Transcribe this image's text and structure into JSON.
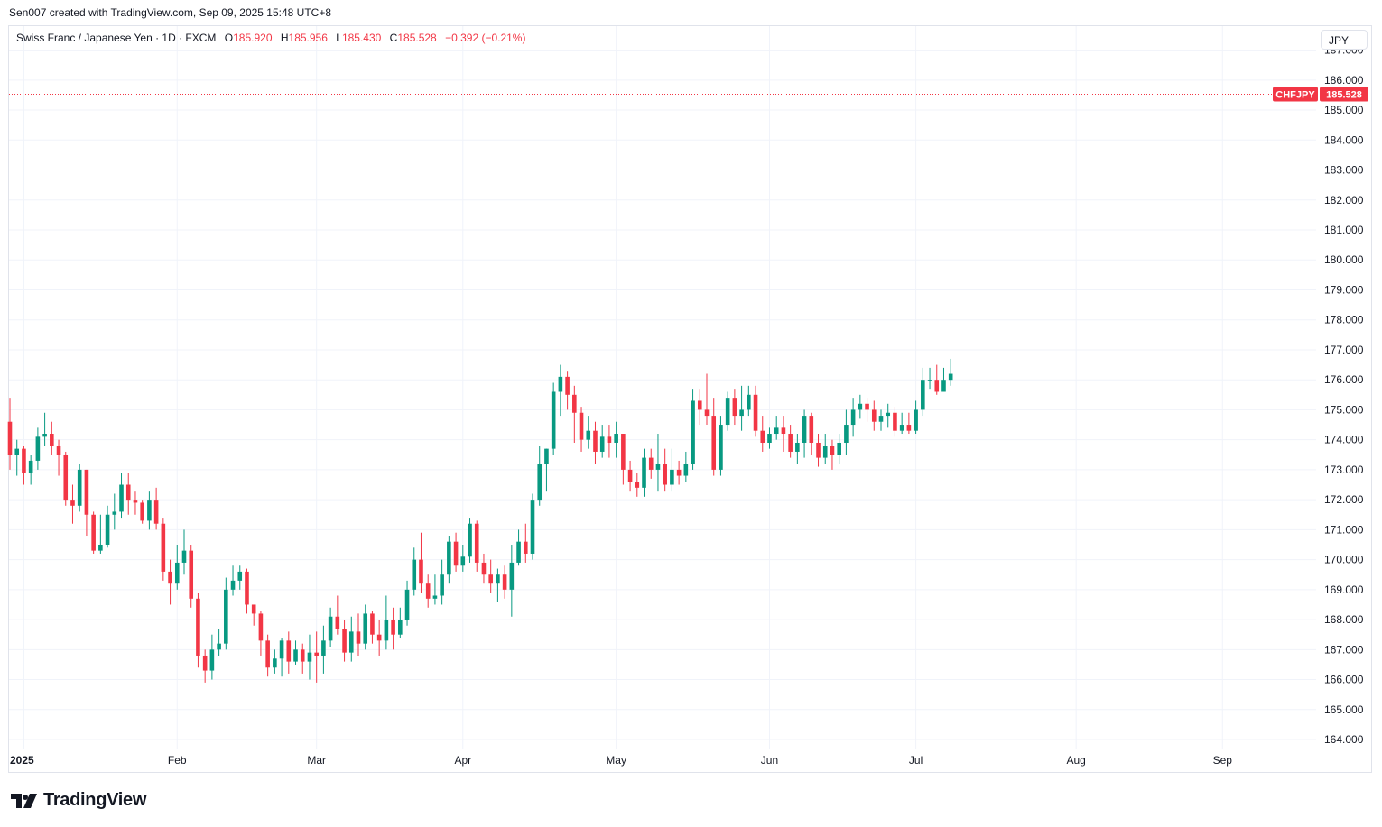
{
  "header": {
    "attribution": "Sen007 created with TradingView.com, Sep 09, 2025 15:48 UTC+8"
  },
  "legend": {
    "symbol": "Swiss Franc / Japanese Yen · 1D · FXCM",
    "open_label": "O",
    "open": "185.920",
    "high_label": "H",
    "high": "185.956",
    "low_label": "L",
    "low": "185.430",
    "close_label": "C",
    "close": "185.528",
    "change": "−0.392 (−0.21%)"
  },
  "currency_button": {
    "label": "JPY"
  },
  "price_tag": {
    "ticker": "CHFJPY",
    "value": "185.528"
  },
  "brand": {
    "name": "TradingView"
  },
  "colors": {
    "up": "#089981",
    "down": "#f23645",
    "grid": "#f0f3fa",
    "text": "#131722"
  },
  "chart_data": {
    "type": "candlestick",
    "title": "Swiss Franc / Japanese Yen · 1D · FXCM",
    "ylim": [
      163.7,
      187.8
    ],
    "yticks": [
      164,
      165,
      166,
      167,
      168,
      169,
      170,
      171,
      172,
      173,
      174,
      175,
      176,
      177,
      178,
      179,
      180,
      181,
      182,
      183,
      184,
      185,
      186,
      187
    ],
    "ytick_labels": [
      "164.000",
      "165.000",
      "166.000",
      "167.000",
      "168.000",
      "169.000",
      "170.000",
      "171.000",
      "172.000",
      "173.000",
      "174.000",
      "175.000",
      "176.000",
      "177.000",
      "178.000",
      "179.000",
      "180.000",
      "181.000",
      "182.000",
      "183.000",
      "184.000",
      "185.000",
      "186.000",
      "187.000"
    ],
    "xticks": [
      {
        "label": "2025",
        "index": 2,
        "bold": true
      },
      {
        "label": "Feb",
        "index": 24
      },
      {
        "label": "Mar",
        "index": 44
      },
      {
        "label": "Apr",
        "index": 65
      },
      {
        "label": "May",
        "index": 87
      },
      {
        "label": "Jun",
        "index": 109
      },
      {
        "label": "Jul",
        "index": 130
      },
      {
        "label": "Aug",
        "index": 153
      },
      {
        "label": "Sep",
        "index": 174
      }
    ],
    "last_price": 185.528,
    "candles": [
      [
        174.6,
        173.5,
        175.4,
        173.0
      ],
      [
        173.5,
        173.7,
        174.0,
        172.8
      ],
      [
        173.7,
        172.9,
        173.8,
        172.5
      ],
      [
        172.9,
        173.3,
        173.5,
        172.5
      ],
      [
        173.3,
        174.1,
        174.4,
        173.0
      ],
      [
        174.1,
        174.2,
        174.9,
        173.8
      ],
      [
        174.2,
        173.8,
        174.6,
        173.5
      ],
      [
        173.8,
        173.5,
        174.0,
        172.8
      ],
      [
        173.5,
        172.0,
        173.6,
        171.8
      ],
      [
        172.0,
        171.8,
        172.5,
        171.2
      ],
      [
        171.8,
        173.0,
        173.2,
        171.6
      ],
      [
        173.0,
        171.5,
        173.0,
        170.8
      ],
      [
        171.5,
        170.3,
        171.6,
        170.2
      ],
      [
        170.3,
        170.5,
        171.5,
        170.2
      ],
      [
        170.5,
        171.5,
        171.8,
        170.4
      ],
      [
        171.5,
        171.6,
        172.2,
        171.0
      ],
      [
        171.6,
        172.5,
        172.9,
        171.4
      ],
      [
        172.5,
        172.0,
        172.9,
        171.5
      ],
      [
        172.0,
        171.9,
        172.3,
        171.5
      ],
      [
        171.9,
        171.3,
        172.0,
        171.2
      ],
      [
        171.3,
        172.0,
        172.3,
        171.0
      ],
      [
        172.0,
        171.2,
        172.4,
        171.0
      ],
      [
        171.2,
        169.6,
        171.4,
        169.3
      ],
      [
        169.6,
        169.2,
        170.0,
        168.5
      ],
      [
        169.2,
        169.9,
        170.5,
        169.0
      ],
      [
        169.9,
        170.3,
        171.0,
        169.5
      ],
      [
        170.3,
        168.7,
        170.5,
        168.4
      ],
      [
        168.7,
        166.8,
        168.9,
        166.4
      ],
      [
        166.8,
        166.3,
        167.0,
        165.9
      ],
      [
        166.3,
        167.0,
        167.5,
        166.0
      ],
      [
        167.0,
        167.2,
        167.7,
        166.8
      ],
      [
        167.2,
        169.0,
        169.4,
        167.0
      ],
      [
        169.0,
        169.3,
        169.8,
        168.8
      ],
      [
        169.3,
        169.6,
        169.8,
        169.0
      ],
      [
        169.6,
        168.5,
        169.7,
        168.2
      ],
      [
        168.5,
        168.2,
        168.5,
        167.8
      ],
      [
        168.2,
        167.3,
        168.3,
        166.8
      ],
      [
        167.3,
        166.4,
        167.5,
        166.1
      ],
      [
        166.4,
        166.7,
        167.0,
        166.2
      ],
      [
        166.7,
        167.3,
        167.4,
        166.1
      ],
      [
        167.3,
        166.6,
        167.6,
        166.2
      ],
      [
        166.6,
        167.0,
        167.3,
        166.5
      ],
      [
        167.0,
        166.6,
        167.2,
        166.2
      ],
      [
        166.6,
        166.9,
        167.5,
        166.0
      ],
      [
        166.9,
        166.8,
        167.6,
        165.9
      ],
      [
        166.8,
        167.3,
        167.8,
        166.2
      ],
      [
        167.3,
        168.1,
        168.4,
        167.1
      ],
      [
        168.1,
        167.7,
        168.8,
        167.5
      ],
      [
        167.7,
        166.9,
        168.0,
        166.6
      ],
      [
        166.9,
        167.6,
        168.1,
        166.6
      ],
      [
        167.6,
        167.2,
        168.2,
        166.8
      ],
      [
        167.2,
        168.2,
        168.5,
        167.0
      ],
      [
        168.2,
        167.5,
        168.3,
        167.2
      ],
      [
        167.5,
        167.3,
        168.0,
        166.8
      ],
      [
        167.3,
        168.0,
        168.8,
        167.0
      ],
      [
        168.0,
        167.5,
        168.4,
        167.0
      ],
      [
        167.5,
        168.0,
        168.4,
        167.4
      ],
      [
        168.0,
        169.0,
        169.3,
        167.8
      ],
      [
        169.0,
        170.0,
        170.4,
        168.8
      ],
      [
        170.0,
        169.2,
        170.9,
        168.9
      ],
      [
        169.2,
        168.7,
        169.5,
        168.4
      ],
      [
        168.7,
        168.8,
        169.5,
        168.5
      ],
      [
        168.8,
        169.5,
        170.0,
        168.5
      ],
      [
        169.5,
        170.6,
        170.8,
        169.2
      ],
      [
        170.6,
        169.8,
        170.9,
        169.6
      ],
      [
        169.8,
        170.1,
        170.5,
        169.6
      ],
      [
        170.1,
        171.2,
        171.4,
        169.9
      ],
      [
        171.2,
        169.9,
        171.3,
        169.6
      ],
      [
        169.9,
        169.5,
        170.2,
        169.2
      ],
      [
        169.5,
        169.2,
        170.0,
        168.9
      ],
      [
        169.2,
        169.5,
        169.7,
        168.6
      ],
      [
        169.5,
        169.0,
        169.8,
        168.7
      ],
      [
        169.0,
        169.9,
        170.5,
        168.1
      ],
      [
        169.9,
        170.6,
        171.0,
        169.8
      ],
      [
        170.6,
        170.2,
        171.2,
        169.9
      ],
      [
        170.2,
        172.0,
        172.2,
        170.0
      ],
      [
        172.0,
        173.2,
        173.8,
        171.8
      ],
      [
        173.2,
        173.7,
        173.7,
        172.3
      ],
      [
        173.7,
        175.6,
        175.9,
        173.5
      ],
      [
        175.6,
        176.1,
        176.5,
        174.8
      ],
      [
        176.1,
        175.5,
        176.3,
        175.0
      ],
      [
        175.5,
        174.9,
        175.8,
        173.9
      ],
      [
        174.9,
        174.0,
        175.1,
        173.6
      ],
      [
        174.0,
        174.3,
        174.8,
        173.7
      ],
      [
        174.3,
        173.6,
        174.6,
        173.2
      ],
      [
        173.6,
        174.1,
        174.5,
        173.4
      ],
      [
        174.1,
        173.9,
        174.5,
        173.4
      ],
      [
        173.9,
        174.2,
        174.6,
        173.4
      ],
      [
        174.2,
        173.0,
        174.2,
        172.5
      ],
      [
        173.0,
        172.6,
        173.3,
        172.3
      ],
      [
        172.6,
        172.4,
        172.9,
        172.1
      ],
      [
        172.4,
        173.4,
        173.7,
        172.1
      ],
      [
        173.4,
        173.0,
        173.7,
        172.7
      ],
      [
        173.0,
        173.2,
        174.2,
        172.3
      ],
      [
        173.2,
        172.5,
        173.7,
        172.3
      ],
      [
        172.5,
        173.0,
        173.7,
        172.3
      ],
      [
        173.0,
        172.8,
        173.3,
        172.5
      ],
      [
        172.8,
        173.2,
        173.6,
        172.6
      ],
      [
        173.2,
        175.3,
        175.7,
        173.0
      ],
      [
        175.3,
        175.0,
        175.7,
        174.5
      ],
      [
        175.0,
        174.8,
        176.2,
        174.5
      ],
      [
        174.8,
        173.0,
        175.4,
        172.8
      ],
      [
        173.0,
        174.5,
        174.8,
        172.8
      ],
      [
        174.5,
        175.4,
        175.6,
        174.3
      ],
      [
        175.4,
        174.8,
        175.7,
        174.5
      ],
      [
        174.8,
        175.0,
        175.8,
        174.3
      ],
      [
        175.0,
        175.5,
        175.8,
        174.8
      ],
      [
        175.5,
        174.3,
        175.8,
        174.1
      ],
      [
        174.3,
        173.9,
        174.8,
        173.6
      ],
      [
        173.9,
        174.2,
        174.4,
        173.7
      ],
      [
        174.2,
        174.4,
        174.8,
        174.0
      ],
      [
        174.4,
        174.2,
        174.8,
        173.6
      ],
      [
        174.2,
        173.6,
        174.5,
        173.4
      ],
      [
        173.6,
        173.9,
        174.2,
        173.2
      ],
      [
        173.9,
        174.8,
        175.0,
        173.4
      ],
      [
        174.8,
        173.9,
        174.9,
        173.5
      ],
      [
        173.9,
        173.4,
        174.2,
        173.1
      ],
      [
        173.4,
        173.8,
        174.2,
        173.2
      ],
      [
        173.8,
        173.5,
        174.0,
        173.0
      ],
      [
        173.5,
        173.9,
        174.2,
        173.2
      ],
      [
        173.9,
        174.5,
        175.0,
        173.5
      ],
      [
        174.5,
        175.0,
        175.4,
        174.1
      ],
      [
        175.0,
        175.2,
        175.5,
        174.7
      ],
      [
        175.2,
        175.0,
        175.4,
        174.6
      ],
      [
        175.0,
        174.6,
        175.3,
        174.3
      ],
      [
        174.6,
        174.8,
        175.0,
        174.3
      ],
      [
        174.8,
        174.9,
        175.2,
        174.4
      ],
      [
        174.9,
        174.3,
        175.1,
        174.1
      ],
      [
        174.3,
        174.5,
        174.9,
        174.2
      ],
      [
        174.5,
        174.3,
        174.9,
        174.2
      ],
      [
        174.3,
        175.0,
        175.3,
        174.2
      ],
      [
        175.0,
        176.0,
        176.4,
        174.8
      ],
      [
        176.0,
        176.0,
        176.4,
        175.7
      ],
      [
        176.0,
        175.6,
        176.5,
        175.5
      ],
      [
        175.6,
        176.0,
        176.4,
        175.7
      ],
      [
        176.0,
        176.2,
        176.7,
        175.8
      ]
    ]
  }
}
